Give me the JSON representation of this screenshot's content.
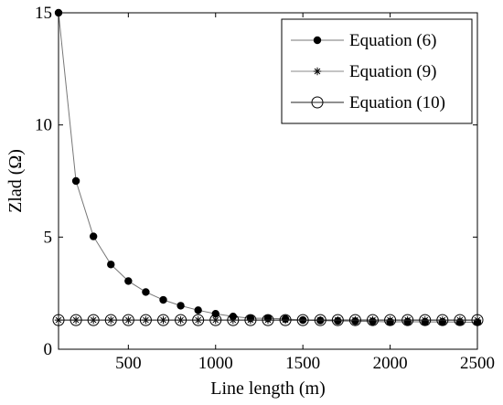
{
  "chart_data": {
    "type": "line",
    "xlabel": "Line length (m)",
    "ylabel": "Zlad (Ω)",
    "xlim": [
      100,
      2500
    ],
    "ylim": [
      0,
      15
    ],
    "xticks": [
      500,
      1000,
      1500,
      2000,
      2500
    ],
    "yticks": [
      0,
      5,
      10,
      15
    ],
    "grid": false,
    "legend_position": "top-right",
    "x": [
      100,
      200,
      300,
      400,
      500,
      600,
      700,
      800,
      900,
      1000,
      1100,
      1200,
      1300,
      1400,
      1500,
      1600,
      1700,
      1800,
      1900,
      2000,
      2100,
      2200,
      2300,
      2400,
      2500
    ],
    "series": [
      {
        "name": "Equation (6)",
        "marker": "filled-circle",
        "line_color": "#777777",
        "values": [
          15.0,
          7.5,
          5.03,
          3.78,
          3.04,
          2.55,
          2.2,
          1.94,
          1.74,
          1.58,
          1.46,
          1.38,
          1.38,
          1.35,
          1.3,
          1.28,
          1.26,
          1.25,
          1.24,
          1.22,
          1.23,
          1.22,
          1.22,
          1.21,
          1.2
        ]
      },
      {
        "name": "Equation (9)",
        "marker": "asterisk",
        "line_color": "#888888",
        "values": [
          1.3,
          1.3,
          1.3,
          1.3,
          1.3,
          1.3,
          1.3,
          1.3,
          1.3,
          1.3,
          1.3,
          1.3,
          1.3,
          1.3,
          1.3,
          1.3,
          1.3,
          1.3,
          1.3,
          1.3,
          1.3,
          1.3,
          1.3,
          1.3,
          1.3
        ]
      },
      {
        "name": "Equation (10)",
        "marker": "open-circle",
        "line_color": "#222222",
        "values": [
          1.3,
          1.3,
          1.3,
          1.3,
          1.3,
          1.3,
          1.3,
          1.3,
          1.3,
          1.3,
          1.3,
          1.3,
          1.3,
          1.3,
          1.3,
          1.3,
          1.3,
          1.3,
          1.3,
          1.3,
          1.3,
          1.3,
          1.3,
          1.3,
          1.3
        ]
      }
    ]
  }
}
